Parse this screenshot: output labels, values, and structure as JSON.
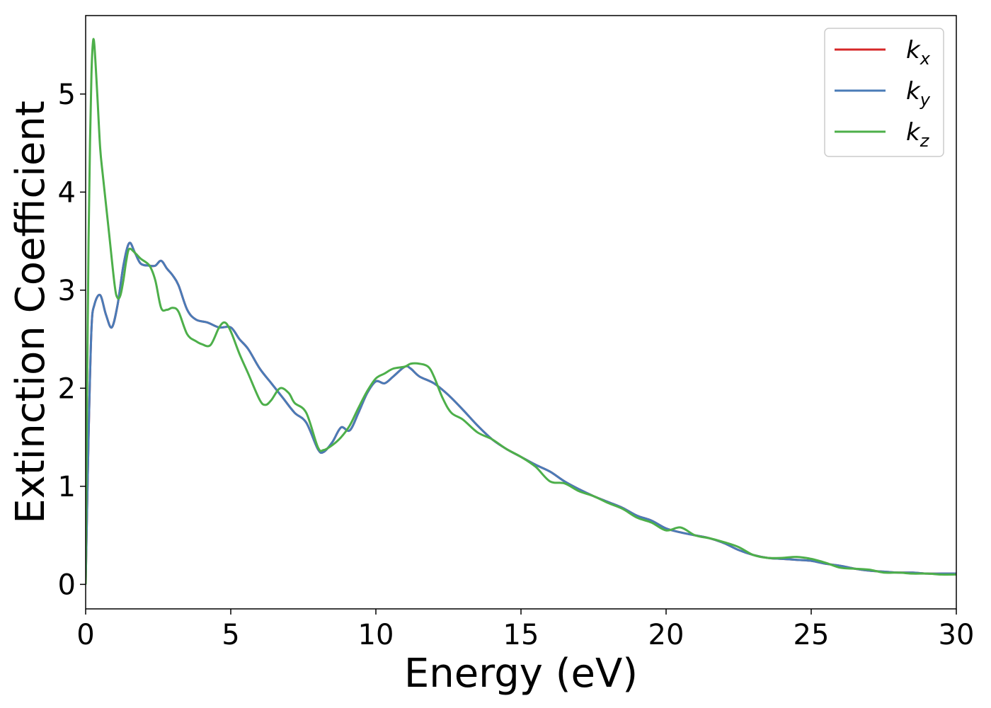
{
  "chart_data": {
    "type": "line",
    "title": "",
    "xlabel": "Energy (eV)",
    "ylabel": "Extinction Coefficient",
    "xlim": [
      0,
      30
    ],
    "ylim": [
      -0.25,
      5.8
    ],
    "xticks": [
      0,
      5,
      10,
      15,
      20,
      25,
      30
    ],
    "yticks": [
      0,
      1,
      2,
      3,
      4,
      5
    ],
    "grid": false,
    "legend_position": "top-right",
    "series": [
      {
        "name": "k",
        "subscript": "x",
        "color": "#d62728",
        "x": [
          0,
          0.1,
          0.2,
          0.3,
          0.5,
          0.7,
          0.9,
          1.1,
          1.3,
          1.5,
          1.7,
          1.9,
          2.2,
          2.4,
          2.6,
          2.8,
          3.0,
          3.2,
          3.5,
          3.8,
          4.2,
          4.6,
          5.0,
          5.3,
          5.6,
          6.0,
          6.4,
          6.8,
          7.2,
          7.6,
          8.0,
          8.2,
          8.5,
          8.8,
          9.1,
          9.4,
          9.7,
          10.0,
          10.3,
          10.6,
          11.0,
          11.2,
          11.5,
          12.0,
          12.5,
          13.0,
          13.5,
          14.0,
          14.5,
          15.0,
          15.5,
          16.0,
          16.5,
          17.0,
          17.5,
          18.0,
          18.5,
          19.0,
          19.5,
          20.0,
          20.5,
          21.0,
          21.5,
          22.0,
          22.5,
          23.0,
          23.5,
          24.0,
          24.5,
          25.0,
          25.5,
          26.0,
          26.5,
          27.0,
          27.5,
          28.0,
          28.5,
          29.0,
          29.5,
          30.0
        ],
        "y": [
          0,
          1.5,
          2.6,
          2.85,
          2.95,
          2.75,
          2.62,
          2.85,
          3.25,
          3.48,
          3.38,
          3.27,
          3.25,
          3.25,
          3.3,
          3.22,
          3.15,
          3.05,
          2.8,
          2.7,
          2.67,
          2.62,
          2.62,
          2.5,
          2.4,
          2.2,
          2.05,
          1.9,
          1.75,
          1.65,
          1.38,
          1.35,
          1.45,
          1.6,
          1.57,
          1.75,
          1.95,
          2.07,
          2.05,
          2.12,
          2.22,
          2.2,
          2.12,
          2.05,
          1.93,
          1.78,
          1.62,
          1.48,
          1.38,
          1.3,
          1.22,
          1.15,
          1.05,
          0.97,
          0.9,
          0.84,
          0.78,
          0.7,
          0.65,
          0.57,
          0.53,
          0.5,
          0.47,
          0.42,
          0.35,
          0.3,
          0.27,
          0.26,
          0.25,
          0.24,
          0.21,
          0.19,
          0.16,
          0.14,
          0.13,
          0.12,
          0.12,
          0.11,
          0.11,
          0.11
        ]
      },
      {
        "name": "k",
        "subscript": "y",
        "color": "#4a7bb7",
        "x": [
          0,
          0.1,
          0.2,
          0.3,
          0.5,
          0.7,
          0.9,
          1.1,
          1.3,
          1.5,
          1.7,
          1.9,
          2.2,
          2.4,
          2.6,
          2.8,
          3.0,
          3.2,
          3.5,
          3.8,
          4.2,
          4.6,
          5.0,
          5.3,
          5.6,
          6.0,
          6.4,
          6.8,
          7.2,
          7.6,
          8.0,
          8.2,
          8.5,
          8.8,
          9.1,
          9.4,
          9.7,
          10.0,
          10.3,
          10.6,
          11.0,
          11.2,
          11.5,
          12.0,
          12.5,
          13.0,
          13.5,
          14.0,
          14.5,
          15.0,
          15.5,
          16.0,
          16.5,
          17.0,
          17.5,
          18.0,
          18.5,
          19.0,
          19.5,
          20.0,
          20.5,
          21.0,
          21.5,
          22.0,
          22.5,
          23.0,
          23.5,
          24.0,
          24.5,
          25.0,
          25.5,
          26.0,
          26.5,
          27.0,
          27.5,
          28.0,
          28.5,
          29.0,
          29.5,
          30.0
        ],
        "y": [
          0,
          1.5,
          2.6,
          2.85,
          2.95,
          2.75,
          2.62,
          2.85,
          3.25,
          3.48,
          3.38,
          3.27,
          3.25,
          3.25,
          3.3,
          3.22,
          3.15,
          3.05,
          2.8,
          2.7,
          2.67,
          2.62,
          2.62,
          2.5,
          2.4,
          2.2,
          2.05,
          1.9,
          1.75,
          1.65,
          1.38,
          1.35,
          1.45,
          1.6,
          1.57,
          1.75,
          1.95,
          2.07,
          2.05,
          2.12,
          2.22,
          2.2,
          2.12,
          2.05,
          1.93,
          1.78,
          1.62,
          1.48,
          1.38,
          1.3,
          1.22,
          1.15,
          1.05,
          0.97,
          0.9,
          0.84,
          0.78,
          0.7,
          0.65,
          0.57,
          0.53,
          0.5,
          0.47,
          0.42,
          0.35,
          0.3,
          0.27,
          0.26,
          0.25,
          0.24,
          0.21,
          0.19,
          0.16,
          0.14,
          0.13,
          0.12,
          0.12,
          0.11,
          0.11,
          0.11
        ]
      },
      {
        "name": "k",
        "subscript": "z",
        "color": "#4daf4a",
        "x": [
          0,
          0.05,
          0.1,
          0.15,
          0.2,
          0.25,
          0.3,
          0.4,
          0.5,
          0.6,
          0.8,
          1.0,
          1.1,
          1.2,
          1.3,
          1.4,
          1.5,
          1.7,
          1.9,
          2.2,
          2.4,
          2.6,
          2.8,
          3.0,
          3.2,
          3.5,
          3.8,
          4.0,
          4.3,
          4.6,
          4.8,
          5.0,
          5.3,
          5.6,
          6.0,
          6.2,
          6.4,
          6.7,
          7.0,
          7.2,
          7.6,
          8.0,
          8.2,
          8.5,
          8.8,
          9.1,
          9.4,
          9.7,
          10.0,
          10.3,
          10.6,
          11.0,
          11.2,
          11.5,
          11.8,
          12.0,
          12.3,
          12.6,
          13.0,
          13.5,
          14.0,
          14.5,
          15.0,
          15.5,
          16.0,
          16.5,
          17.0,
          17.5,
          18.0,
          18.5,
          19.0,
          19.5,
          20.0,
          20.5,
          21.0,
          21.5,
          22.0,
          22.5,
          23.0,
          23.5,
          24.0,
          24.5,
          25.0,
          25.5,
          26.0,
          26.5,
          27.0,
          27.5,
          28.0,
          28.5,
          29.0,
          29.5,
          30.0
        ],
        "y": [
          0,
          2.0,
          3.5,
          4.5,
          5.2,
          5.52,
          5.5,
          5.0,
          4.45,
          4.15,
          3.6,
          3.05,
          2.92,
          2.95,
          3.1,
          3.3,
          3.42,
          3.38,
          3.32,
          3.25,
          3.1,
          2.82,
          2.8,
          2.82,
          2.78,
          2.55,
          2.48,
          2.45,
          2.44,
          2.62,
          2.67,
          2.58,
          2.35,
          2.15,
          1.88,
          1.83,
          1.88,
          2.0,
          1.95,
          1.85,
          1.75,
          1.4,
          1.37,
          1.42,
          1.5,
          1.62,
          1.8,
          1.97,
          2.1,
          2.15,
          2.2,
          2.22,
          2.25,
          2.25,
          2.22,
          2.12,
          1.9,
          1.75,
          1.68,
          1.55,
          1.48,
          1.38,
          1.3,
          1.2,
          1.05,
          1.03,
          0.95,
          0.9,
          0.83,
          0.77,
          0.68,
          0.63,
          0.55,
          0.58,
          0.5,
          0.47,
          0.43,
          0.38,
          0.3,
          0.27,
          0.27,
          0.28,
          0.26,
          0.22,
          0.17,
          0.16,
          0.15,
          0.12,
          0.12,
          0.11,
          0.11,
          0.1,
          0.1
        ]
      }
    ]
  }
}
